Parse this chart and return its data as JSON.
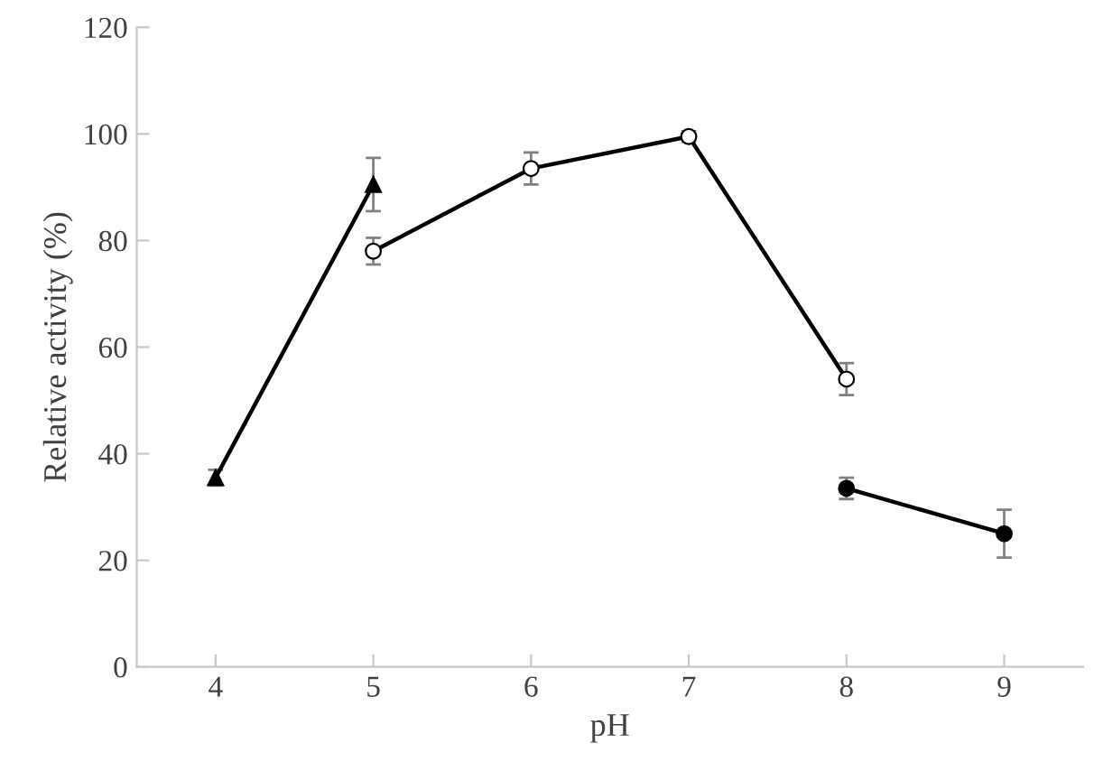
{
  "chart_data": {
    "type": "line",
    "xlabel": "pH",
    "ylabel": "Relative activity (%)",
    "xlim": [
      3.5,
      9.5
    ],
    "xticks": [
      4,
      5,
      6,
      7,
      8,
      9
    ],
    "ylim": [
      0,
      120
    ],
    "yticks": [
      0,
      20,
      40,
      60,
      80,
      100,
      120
    ],
    "grid": false,
    "series": [
      {
        "color": "#000000",
        "marker": "triangle",
        "x": [
          4,
          5
        ],
        "values": [
          35.5,
          90.5
        ],
        "errors": [
          1.5,
          5
        ]
      },
      {
        "color": "#ffffff",
        "marker": "circle",
        "x": [
          5,
          6,
          7,
          8
        ],
        "values": [
          78,
          93.5,
          99.5,
          54
        ],
        "errors": [
          2.5,
          3,
          1,
          3
        ]
      },
      {
        "color": "#000000",
        "marker": "circle",
        "x": [
          8,
          9
        ],
        "values": [
          33.5,
          25
        ],
        "errors": [
          2,
          4.5
        ]
      }
    ]
  }
}
